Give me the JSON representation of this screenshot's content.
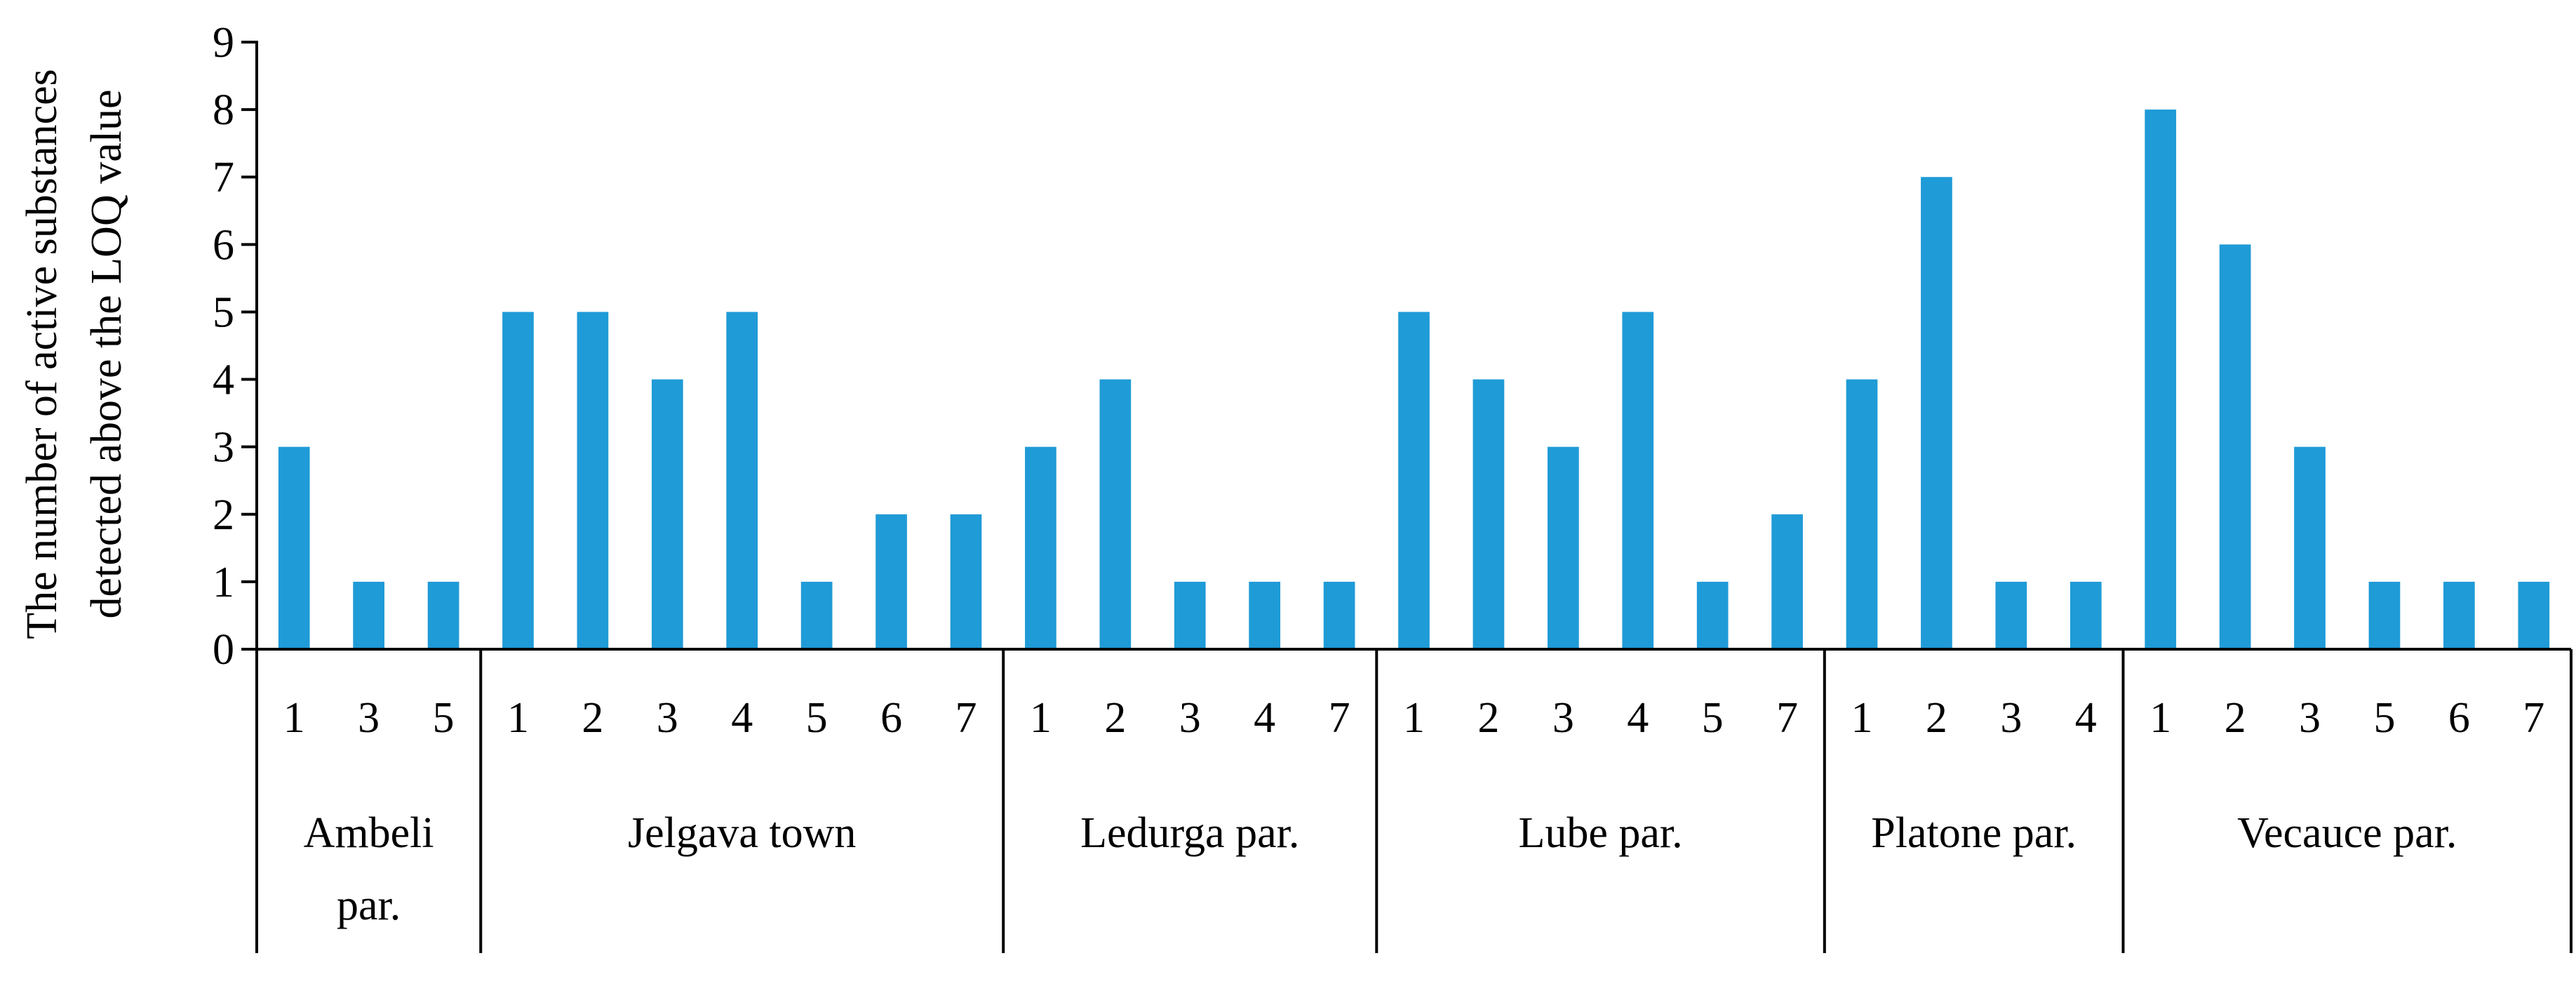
{
  "chart_data": {
    "type": "bar",
    "title": "",
    "xlabel": "",
    "ylabel": "The number of active substances detected above the LOQ value",
    "ylabel_lines": [
      "The number of active substances",
      "detected above the LOQ value"
    ],
    "ylim": [
      0,
      9
    ],
    "yticks": [
      0,
      1,
      2,
      3,
      4,
      5,
      6,
      7,
      8,
      9
    ],
    "grid": false,
    "bar_color": "#1F9BD7",
    "groups": [
      {
        "name": "Ambeli par.",
        "name_lines": [
          "Ambeli",
          "par."
        ],
        "categories": [
          "1",
          "3",
          "5"
        ],
        "values": [
          3,
          1,
          1
        ]
      },
      {
        "name": "Jelgava town",
        "name_lines": [
          "Jelgava town"
        ],
        "categories": [
          "1",
          "2",
          "3",
          "4",
          "5",
          "6",
          "7"
        ],
        "values": [
          5,
          5,
          4,
          5,
          1,
          2,
          2
        ]
      },
      {
        "name": "Ledurga par.",
        "name_lines": [
          "Ledurga par."
        ],
        "categories": [
          "1",
          "2",
          "3",
          "4",
          "7"
        ],
        "values": [
          3,
          4,
          1,
          1,
          1
        ]
      },
      {
        "name": "Lube par.",
        "name_lines": [
          "Lube par."
        ],
        "categories": [
          "1",
          "2",
          "3",
          "4",
          "5",
          "7"
        ],
        "values": [
          5,
          4,
          3,
          5,
          1,
          2
        ]
      },
      {
        "name": "Platone par.",
        "name_lines": [
          "Platone par."
        ],
        "categories": [
          "1",
          "2",
          "3",
          "4"
        ],
        "values": [
          4,
          7,
          1,
          1
        ]
      },
      {
        "name": "Vecauce par.",
        "name_lines": [
          "Vecauce par."
        ],
        "categories": [
          "1",
          "2",
          "3",
          "5",
          "6",
          "7"
        ],
        "values": [
          8,
          6,
          3,
          1,
          1,
          1
        ]
      }
    ]
  }
}
